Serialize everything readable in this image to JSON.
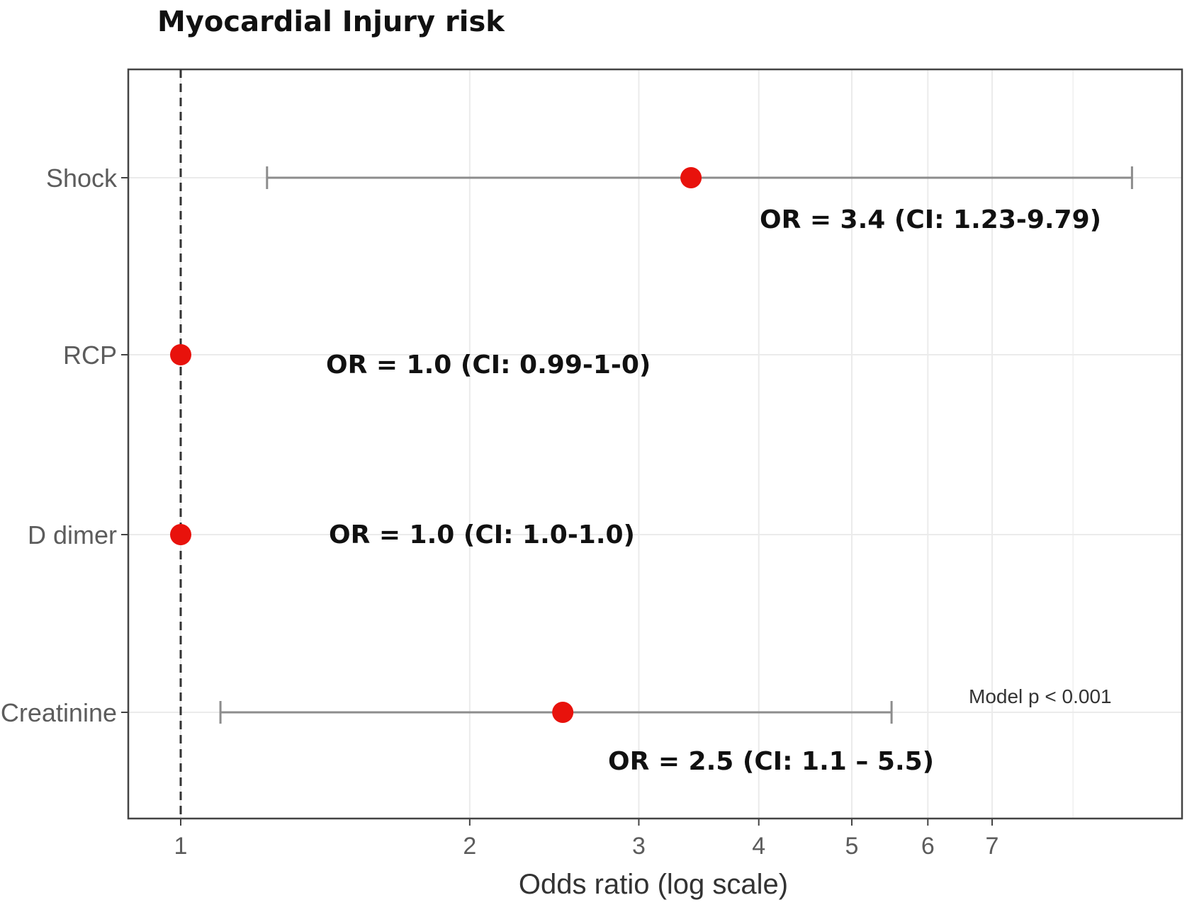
{
  "chart_data": {
    "type": "scatter",
    "title": "Myocardial Injury risk",
    "xlabel": "Odds ratio (log scale)",
    "ylabel": "",
    "x_scale": "log",
    "xlim": [
      0.97,
      9.9
    ],
    "xticks": [
      1,
      2,
      3,
      4,
      5,
      6,
      7
    ],
    "reference_line": 1,
    "grid": true,
    "point_color": "#e8120c",
    "errorbar_color": "#8c8c8c",
    "categories": [
      "Shock",
      "RCP",
      "D dimer",
      "Creatinine"
    ],
    "points": [
      {
        "label": "Shock",
        "or": 3.4,
        "ci_low": 1.23,
        "ci_high": 9.79,
        "annotation": "OR = 3.4 (CI: 1.23-9.79)"
      },
      {
        "label": "RCP",
        "or": 1.0,
        "ci_low": null,
        "ci_high": null,
        "annotation": "OR = 1.0 (CI: 0.99-1-0)"
      },
      {
        "label": "D dimer",
        "or": 1.0,
        "ci_low": null,
        "ci_high": null,
        "annotation": "OR = 1.0 (CI: 1.0-1.0)"
      },
      {
        "label": "Creatinine",
        "or": 2.5,
        "ci_low": 1.1,
        "ci_high": 5.5,
        "annotation": "OR = 2.5 (CI: 1.1 – 5.5)"
      }
    ],
    "note": "Model p < 0.001"
  }
}
